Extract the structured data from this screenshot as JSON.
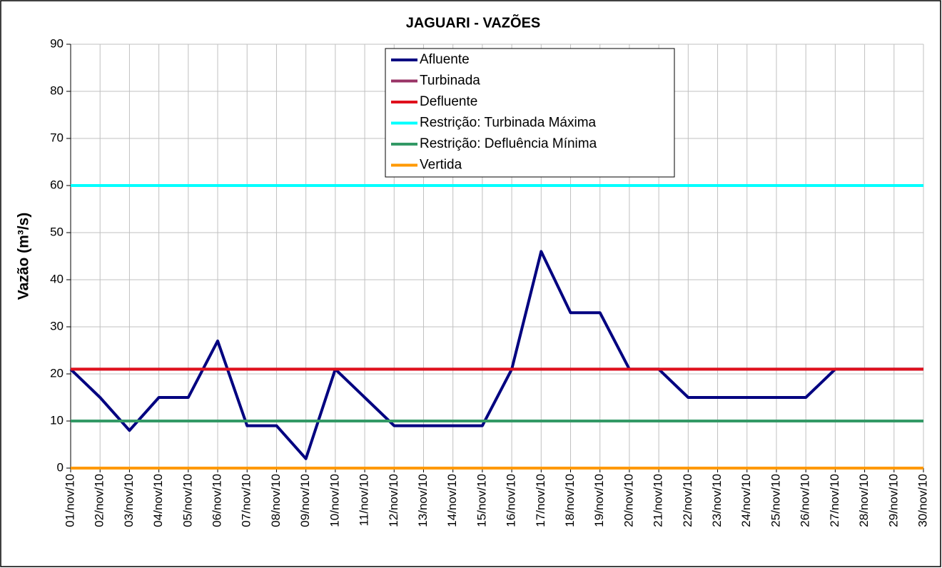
{
  "chart_data": {
    "type": "line",
    "title": "JAGUARI - VAZÕES",
    "y_label": "Vazão (m³/s)",
    "categories": [
      "01/nov/10",
      "02/nov/10",
      "03/nov/10",
      "04/nov/10",
      "05/nov/10",
      "06/nov/10",
      "07/nov/10",
      "08/nov/10",
      "09/nov/10",
      "10/nov/10",
      "11/nov/10",
      "12/nov/10",
      "13/nov/10",
      "14/nov/10",
      "15/nov/10",
      "16/nov/10",
      "17/nov/10",
      "18/nov/10",
      "19/nov/10",
      "20/nov/10",
      "21/nov/10",
      "22/nov/10",
      "23/nov/10",
      "24/nov/10",
      "25/nov/10",
      "26/nov/10",
      "27/nov/10",
      "28/nov/10",
      "29/nov/10",
      "30/nov/10"
    ],
    "series": [
      {
        "name": "Afluente",
        "color": "#000080",
        "values": [
          21,
          15,
          8,
          15,
          15,
          27,
          9,
          9,
          2,
          21,
          15,
          9,
          9,
          9,
          9,
          21,
          46,
          33,
          33,
          21,
          21,
          15,
          15,
          15,
          15,
          15,
          21,
          21,
          21,
          21
        ]
      },
      {
        "name": "Turbinada",
        "color": "#993366",
        "values": [
          21,
          21,
          21,
          21,
          21,
          21,
          21,
          21,
          21,
          21,
          21,
          21,
          21,
          21,
          21,
          21,
          21,
          21,
          21,
          21,
          21,
          21,
          21,
          21,
          21,
          21,
          21,
          21,
          21,
          21
        ]
      },
      {
        "name": "Defluente",
        "color": "#e0101c",
        "values": [
          21,
          21,
          21,
          21,
          21,
          21,
          21,
          21,
          21,
          21,
          21,
          21,
          21,
          21,
          21,
          21,
          21,
          21,
          21,
          21,
          21,
          21,
          21,
          21,
          21,
          21,
          21,
          21,
          21,
          21
        ]
      },
      {
        "name": "Restrição: Turbinada Máxima",
        "color": "#00ffff",
        "values": [
          60,
          60,
          60,
          60,
          60,
          60,
          60,
          60,
          60,
          60,
          60,
          60,
          60,
          60,
          60,
          60,
          60,
          60,
          60,
          60,
          60,
          60,
          60,
          60,
          60,
          60,
          60,
          60,
          60,
          60
        ]
      },
      {
        "name": "Restrição: Defluência Mínima",
        "color": "#339966",
        "values": [
          10,
          10,
          10,
          10,
          10,
          10,
          10,
          10,
          10,
          10,
          10,
          10,
          10,
          10,
          10,
          10,
          10,
          10,
          10,
          10,
          10,
          10,
          10,
          10,
          10,
          10,
          10,
          10,
          10,
          10
        ]
      },
      {
        "name": "Vertida",
        "color": "#ff9900",
        "values": [
          0,
          0,
          0,
          0,
          0,
          0,
          0,
          0,
          0,
          0,
          0,
          0,
          0,
          0,
          0,
          0,
          0,
          0,
          0,
          0,
          0,
          0,
          0,
          0,
          0,
          0,
          0,
          0,
          0,
          0
        ]
      }
    ],
    "ylim": [
      0,
      90
    ],
    "yticks": [
      0,
      10,
      20,
      30,
      40,
      50,
      60,
      70,
      80,
      90
    ],
    "grid": true
  }
}
